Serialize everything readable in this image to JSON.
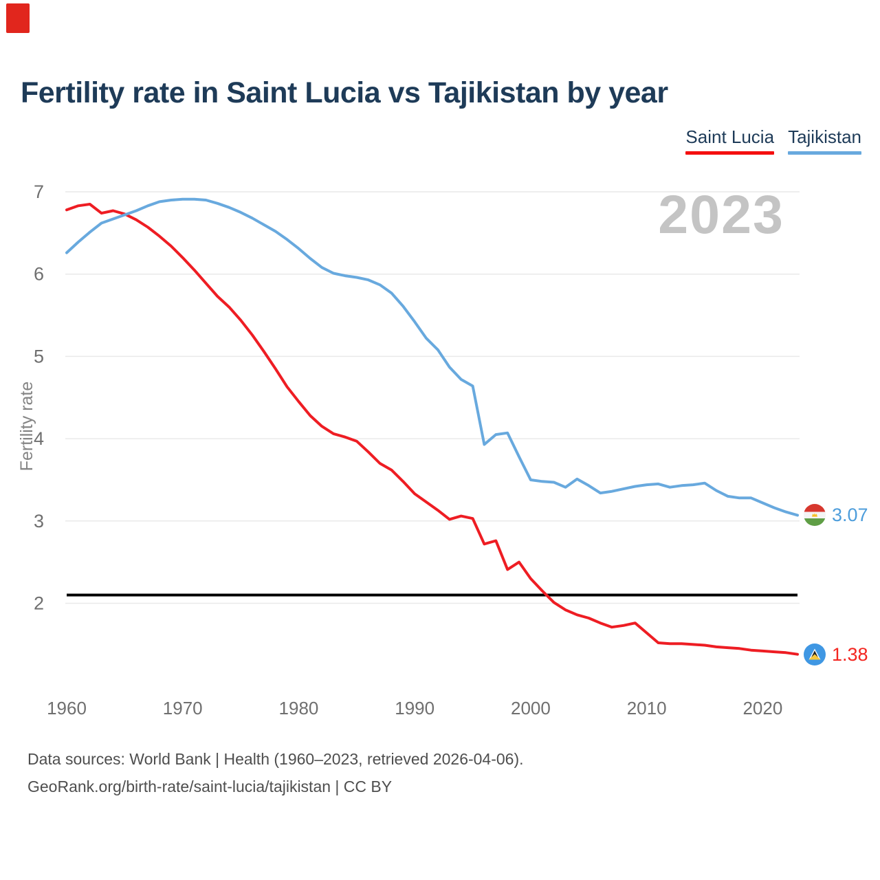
{
  "title": "Fertility rate in Saint Lucia vs Tajikistan by year",
  "watermark": "2023",
  "legend": [
    {
      "label": "Saint Lucia",
      "color": "#f40f0f"
    },
    {
      "label": "Tajikistan",
      "color": "#68a9de"
    }
  ],
  "y_axis": {
    "label": "Fertility rate",
    "ticks": [
      7,
      6,
      5,
      4,
      3,
      2
    ]
  },
  "x_axis": {
    "ticks": [
      1960,
      1970,
      1980,
      1990,
      2000,
      2010,
      2020
    ]
  },
  "end_labels": [
    {
      "series": "Tajikistan",
      "value": "3.07",
      "color": "#4d9ddb"
    },
    {
      "series": "Saint Lucia",
      "value": "1.38",
      "color": "#f3251f"
    }
  ],
  "footer": {
    "line1": "Data sources: World Bank | Health (1960–2023, retrieved 2026-04-06).",
    "line2": "GeoRank.org/birth-rate/saint-lucia/tajikistan | CC BY"
  },
  "colors": {
    "saint_lucia_line": "#ee1d23",
    "tajikistan_line": "#68a9de",
    "reference_line": "#000000",
    "gridline": "#e9e9e9",
    "tick_text": "#6f6f6f",
    "axis_label_text": "#848484",
    "watermark_text": "#c4c4c4",
    "title_text": "#1e3b58",
    "corner_marker": "#e1261d"
  },
  "chart_data": {
    "type": "line",
    "xlabel": "",
    "ylabel": "Fertility rate",
    "xlim": [
      1960,
      2023
    ],
    "ylim": [
      1.3,
      7
    ],
    "grid": "horizontal",
    "legend_position": "top-right",
    "reference_line": 2.1,
    "years": [
      1960,
      1961,
      1962,
      1963,
      1964,
      1965,
      1966,
      1967,
      1968,
      1969,
      1970,
      1971,
      1972,
      1973,
      1974,
      1975,
      1976,
      1977,
      1978,
      1979,
      1980,
      1981,
      1982,
      1983,
      1984,
      1985,
      1986,
      1987,
      1988,
      1989,
      1990,
      1991,
      1992,
      1993,
      1994,
      1995,
      1996,
      1997,
      1998,
      1999,
      2000,
      2001,
      2002,
      2003,
      2004,
      2005,
      2006,
      2007,
      2008,
      2009,
      2010,
      2011,
      2012,
      2013,
      2014,
      2015,
      2016,
      2017,
      2018,
      2019,
      2020,
      2021,
      2022,
      2023
    ],
    "series": [
      {
        "name": "Saint Lucia",
        "color": "#ee1d23",
        "end_value": 1.38,
        "values": [
          6.78,
          6.83,
          6.85,
          6.74,
          6.77,
          6.73,
          6.66,
          6.57,
          6.46,
          6.34,
          6.2,
          6.05,
          5.89,
          5.73,
          5.6,
          5.44,
          5.26,
          5.06,
          4.85,
          4.63,
          4.45,
          4.28,
          4.15,
          4.06,
          4.02,
          3.97,
          3.84,
          3.7,
          3.62,
          3.48,
          3.33,
          3.23,
          3.13,
          3.02,
          3.06,
          3.03,
          2.72,
          2.76,
          2.41,
          2.5,
          2.3,
          2.15,
          2.01,
          1.92,
          1.86,
          1.82,
          1.76,
          1.71,
          1.73,
          1.76,
          1.64,
          1.52,
          1.51,
          1.51,
          1.5,
          1.49,
          1.47,
          1.46,
          1.45,
          1.43,
          1.42,
          1.41,
          1.4,
          1.38
        ]
      },
      {
        "name": "Tajikistan",
        "color": "#68a9de",
        "end_value": 3.07,
        "values": [
          6.26,
          6.39,
          6.51,
          6.62,
          6.67,
          6.72,
          6.77,
          6.83,
          6.88,
          6.9,
          6.91,
          6.91,
          6.9,
          6.86,
          6.81,
          6.75,
          6.68,
          6.6,
          6.52,
          6.42,
          6.31,
          6.19,
          6.08,
          6.01,
          5.98,
          5.96,
          5.93,
          5.87,
          5.77,
          5.61,
          5.42,
          5.22,
          5.08,
          4.87,
          4.72,
          4.64,
          3.93,
          4.05,
          4.07,
          3.78,
          3.5,
          3.48,
          3.47,
          3.41,
          3.51,
          3.43,
          3.34,
          3.36,
          3.39,
          3.42,
          3.44,
          3.45,
          3.41,
          3.43,
          3.44,
          3.46,
          3.37,
          3.3,
          3.28,
          3.28,
          3.22,
          3.16,
          3.11,
          3.07
        ]
      }
    ]
  }
}
